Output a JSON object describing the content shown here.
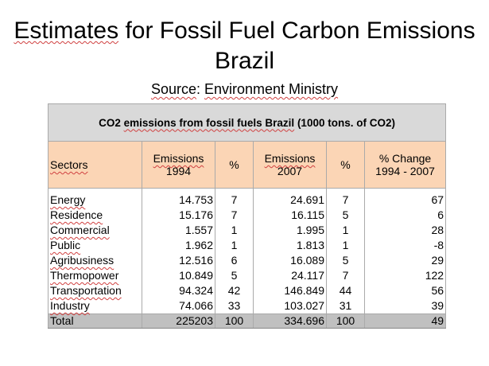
{
  "title": {
    "line1_word1": "Estimates",
    "line1_rest": " for Fossil Fuel Carbon Emissions",
    "line2": "Brazil"
  },
  "source": {
    "label": "Source",
    "sep": ": ",
    "value": "Environment Ministry"
  },
  "table": {
    "caption_pre": "CO2 ",
    "caption_mid": "emissions from fossil fuels Brazil",
    "caption_post": " (1000 tons. of CO2)",
    "headers": {
      "sectors": "Sectors",
      "emissions_1994_a": "Emissions",
      "emissions_1994_b": "1994",
      "pct_1994": "%",
      "emissions_2007_a": "Emissions",
      "emissions_2007_b": "2007",
      "pct_2007": "%",
      "change_a": "% Change",
      "change_b": "1994 - 2007"
    },
    "rows": [
      {
        "sector": "Energy",
        "e1994": "14.753",
        "p1994": "7",
        "e2007": "24.691",
        "p2007": "7",
        "change": "67"
      },
      {
        "sector": "Residence",
        "e1994": "15.176",
        "p1994": "7",
        "e2007": "16.115",
        "p2007": "5",
        "change": "6"
      },
      {
        "sector": "Commercial",
        "e1994": "1.557",
        "p1994": "1",
        "e2007": "1.995",
        "p2007": "1",
        "change": "28"
      },
      {
        "sector": "Public",
        "e1994": "1.962",
        "p1994": "1",
        "e2007": "1.813",
        "p2007": "1",
        "change": "-8"
      },
      {
        "sector": "Agribusiness",
        "e1994": "12.516",
        "p1994": "6",
        "e2007": "16.089",
        "p2007": "5",
        "change": "29"
      },
      {
        "sector": "Thermopower",
        "e1994": "10.849",
        "p1994": "5",
        "e2007": "24.117",
        "p2007": "7",
        "change": "122"
      },
      {
        "sector": "Transportation",
        "e1994": "94.324",
        "p1994": "42",
        "e2007": "146.849",
        "p2007": "44",
        "change": "56"
      },
      {
        "sector": "Industry",
        "e1994": "74.066",
        "p1994": "33",
        "e2007": "103.027",
        "p2007": "31",
        "change": "39"
      }
    ],
    "total": {
      "sector": "Total",
      "e1994": "225203",
      "p1994": "100",
      "e2007": "334.696",
      "p2007": "100",
      "change": "49"
    }
  }
}
